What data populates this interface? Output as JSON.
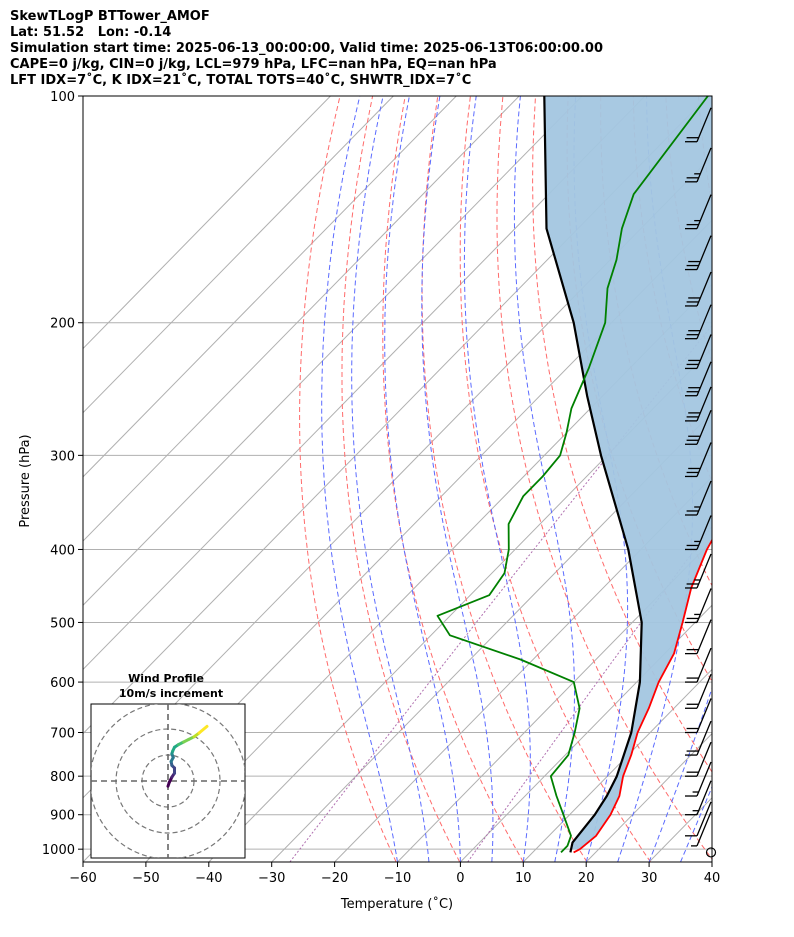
{
  "header": {
    "line1": "SkewTLogP BTTower_AMOF",
    "line2": "Lat: 51.52   Lon: -0.14",
    "line3": "Simulation start time: 2025-06-13_00:00:00, Valid time: 2025-06-13T06:00:00.00",
    "line4": "CAPE=0 j/kg, CIN=0 j/kg, LCL=979 hPa, LFC=nan hPa, EQ=nan hPa",
    "line5": "LFT IDX=7˚C, K IDX=21˚C, TOTAL TOTS=40˚C, SHWTR_IDX=7˚C"
  },
  "colors": {
    "temperature": "#ff0000",
    "dewpoint": "#008000",
    "parcel": "#000000",
    "cin_shade": "#a3c6e0",
    "dry_adiabat": "#ff6b6b",
    "moist_adiabat": "#5b6bff",
    "mixing_ratio": "#b070b0",
    "isotherm": "#b0b0b0"
  },
  "chart_data": [
    {
      "type": "line",
      "subtype": "skew-T log-P",
      "xlabel": "Temperature (˚C)",
      "ylabel": "Pressure (hPa)",
      "xlim": [
        -60,
        40
      ],
      "ylim": [
        1040,
        100
      ],
      "y_scale": "log",
      "x_ticks": [
        "−60",
        "−50",
        "−40",
        "−30",
        "−20",
        "−10",
        "0",
        "10",
        "20",
        "30",
        "40"
      ],
      "y_ticks": [
        "100",
        "200",
        "300",
        "400",
        "500",
        "600",
        "700",
        "800",
        "900",
        "1000"
      ],
      "grid": true,
      "series": [
        {
          "key": "temperature",
          "p": [
            1010,
            1000,
            960,
            900,
            850,
            800,
            750,
            700,
            650,
            600,
            550,
            500,
            450,
            400,
            350,
            310,
            280,
            260,
            240,
            220,
            205,
            190,
            175,
            160,
            145,
            130,
            120,
            110,
            100
          ],
          "t": [
            16.5,
            17,
            17.5,
            16.5,
            15,
            12.5,
            10.5,
            8,
            6,
            3.5,
            1.5,
            -2,
            -6,
            -9.5,
            -12.5,
            -14.5,
            -17.5,
            -20,
            -22,
            -24.5,
            -27,
            -31,
            -36.5,
            -42,
            -46.5,
            -50,
            -53.5,
            -56,
            -58.5
          ]
        },
        {
          "key": "dewpoint",
          "p": [
            1010,
            990,
            960,
            900,
            850,
            800,
            750,
            700,
            650,
            600,
            560,
            520,
            490,
            460,
            430,
            400,
            370,
            340,
            320,
            300,
            280,
            260,
            230,
            200,
            180,
            165,
            150,
            135,
            100
          ],
          "t": [
            14.5,
            14.5,
            13.5,
            9,
            5,
            1,
            0.5,
            -2,
            -5,
            -10,
            -22,
            -37,
            -42,
            -37,
            -38,
            -41,
            -45,
            -47,
            -47,
            -47.5,
            -50,
            -53,
            -56.5,
            -61,
            -66,
            -69,
            -73,
            -76.5,
            -80
          ]
        },
        {
          "key": "parcel",
          "p": [
            1010,
            980,
            950,
            900,
            850,
            800,
            700,
            600,
            500,
            400,
            300,
            250,
            200,
            150,
            100
          ],
          "t": [
            16,
            14.8,
            14.5,
            14,
            13,
            11.5,
            7,
            0.5,
            -8.5,
            -22,
            -41,
            -52.5,
            -66,
            -85,
            -106
          ]
        }
      ],
      "moist_adiabats_start_c": [
        -10,
        -5,
        0,
        5,
        10,
        15,
        20,
        25,
        30,
        35
      ],
      "dry_adiabats_theta_k": [
        260,
        270,
        280,
        290,
        300,
        310,
        320,
        330,
        340,
        350,
        360,
        370,
        380,
        390,
        400,
        410
      ],
      "mixing_ratio_lines_gkg": [
        0.4,
        4
      ],
      "wind_barbs": {
        "p": [
          1010,
          990,
          960,
          900,
          850,
          800,
          750,
          700,
          650,
          600,
          550,
          500,
          450,
          400,
          360,
          320,
          290,
          270,
          250,
          230,
          210,
          190,
          170,
          150,
          130,
          115
        ],
        "speed_kt": [
          2,
          8,
          10,
          15,
          15,
          20,
          20,
          20,
          20,
          20,
          20,
          25,
          25,
          25,
          25,
          30,
          30,
          30,
          30,
          30,
          30,
          30,
          30,
          25,
          25,
          20
        ],
        "calm_circle_at_bottom": true
      }
    },
    {
      "type": "line",
      "subtype": "hodograph",
      "title": "Wind Profile",
      "subtitle": "10m/s increment",
      "colormap": "viridis",
      "u": [
        0,
        0.5,
        1.5,
        2.5,
        2.5,
        1.5,
        1.2,
        2.0,
        1.5,
        1.8,
        2.5,
        4,
        6,
        8,
        10,
        12,
        15
      ],
      "v": [
        -2,
        -0.5,
        1.5,
        3,
        5,
        6,
        7.5,
        9,
        10.5,
        11.5,
        13,
        14,
        15,
        16,
        17,
        18.5,
        21
      ]
    }
  ]
}
